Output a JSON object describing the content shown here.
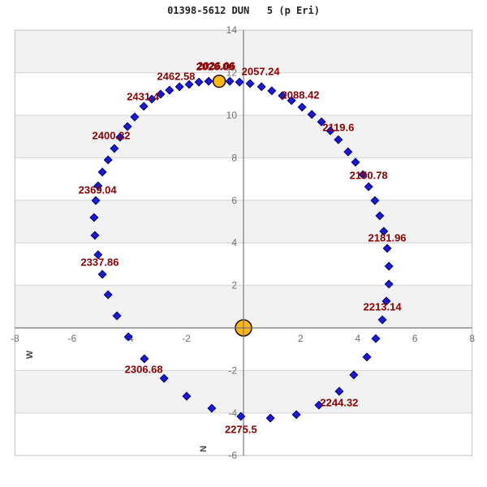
{
  "title": "01398-5612 DUN   5 (p Eri)",
  "colors": {
    "point_fill": "#1a1ad6",
    "point_stroke": "#000080",
    "star_fill": "#ffb612",
    "star_stroke": "#111111",
    "epoch_label": "#8b0000",
    "tick_label": "#6e6e6e",
    "band_gray": "#f2f2f2",
    "gridline": "#d4d4d4",
    "axis_line": "#777777",
    "plot_border": "#c0c0c0"
  },
  "chart_data": {
    "type": "scatter",
    "title": "01398-5612 DUN   5 (p Eri)",
    "description": "Binary star orbit plot: ephemeris positions of companion around primary (at origin), epochs labeled in years",
    "xlim": [
      -8,
      8
    ],
    "ylim": [
      -6,
      14
    ],
    "x_ticks": [
      -8,
      -6,
      -4,
      -2,
      2,
      4,
      6,
      8
    ],
    "y_ticks": [
      14,
      12,
      10,
      8,
      6,
      4,
      2,
      -2,
      -4,
      -6
    ],
    "grid": "horizontal-bands",
    "direction_labels": {
      "west": "W",
      "north": "N"
    },
    "primary_star": {
      "x": 0,
      "y": 0
    },
    "companion_current": {
      "x": -0.85,
      "y": 11.6
    },
    "orbit_points": [
      [
        -0.48,
        11.6
      ],
      [
        -0.14,
        11.56
      ],
      [
        0.23,
        11.49
      ],
      [
        0.63,
        11.34
      ],
      [
        0.99,
        11.15
      ],
      [
        1.36,
        10.92
      ],
      [
        1.68,
        10.69
      ],
      [
        2.05,
        10.38
      ],
      [
        2.39,
        10.04
      ],
      [
        2.73,
        9.69
      ],
      [
        3.04,
        9.27
      ],
      [
        3.32,
        8.85
      ],
      [
        3.66,
        8.28
      ],
      [
        3.92,
        7.79
      ],
      [
        4.18,
        7.21
      ],
      [
        4.38,
        6.64
      ],
      [
        4.6,
        5.99
      ],
      [
        4.77,
        5.27
      ],
      [
        4.91,
        4.54
      ],
      [
        5.03,
        3.74
      ],
      [
        5.09,
        2.9
      ],
      [
        5.09,
        2.06
      ],
      [
        5.0,
        1.26
      ],
      [
        4.86,
        0.38
      ],
      [
        4.63,
        -0.5
      ],
      [
        4.32,
        -1.37
      ],
      [
        3.86,
        -2.21
      ],
      [
        3.35,
        -2.98
      ],
      [
        2.64,
        -3.63
      ],
      [
        1.85,
        -4.08
      ],
      [
        0.94,
        -4.24
      ],
      [
        -0.09,
        -4.16
      ],
      [
        -1.11,
        -3.78
      ],
      [
        -1.99,
        -3.21
      ],
      [
        -2.78,
        -2.37
      ],
      [
        -3.47,
        -1.45
      ],
      [
        -4.03,
        -0.42
      ],
      [
        -4.43,
        0.57
      ],
      [
        -4.74,
        1.56
      ],
      [
        -4.94,
        2.52
      ],
      [
        -5.09,
        3.44
      ],
      [
        -5.2,
        4.35
      ],
      [
        -5.23,
        5.19
      ],
      [
        -5.17,
        5.99
      ],
      [
        -5.09,
        6.68
      ],
      [
        -4.94,
        7.33
      ],
      [
        -4.74,
        7.9
      ],
      [
        -4.52,
        8.44
      ],
      [
        -4.32,
        8.97
      ],
      [
        -4.06,
        9.47
      ],
      [
        -3.81,
        9.92
      ],
      [
        -3.49,
        10.42
      ],
      [
        -3.21,
        10.76
      ],
      [
        -2.9,
        10.99
      ],
      [
        -2.59,
        11.18
      ],
      [
        -2.24,
        11.34
      ],
      [
        -1.9,
        11.45
      ],
      [
        -1.56,
        11.56
      ],
      [
        -1.22,
        11.6
      ]
    ],
    "epoch_labels": [
      {
        "text": "2026.06",
        "x": -0.99,
        "y": 12.29,
        "doubled": true
      },
      {
        "text": "2057.24",
        "x": 0.6,
        "y": 12.06
      },
      {
        "text": "2088.42",
        "x": 1.99,
        "y": 10.95
      },
      {
        "text": "2119.6",
        "x": 3.32,
        "y": 9.43
      },
      {
        "text": "2150.78",
        "x": 4.38,
        "y": 7.18
      },
      {
        "text": "2181.96",
        "x": 5.03,
        "y": 4.24
      },
      {
        "text": "2213.14",
        "x": 4.86,
        "y": 0.99
      },
      {
        "text": "2244.32",
        "x": 3.35,
        "y": -3.51
      },
      {
        "text": "2275.5",
        "x": -0.09,
        "y": -4.77
      },
      {
        "text": "2306.68",
        "x": -3.49,
        "y": -1.95
      },
      {
        "text": "2337.86",
        "x": -5.03,
        "y": 3.09
      },
      {
        "text": "2369.04",
        "x": -5.11,
        "y": 6.49
      },
      {
        "text": "2400.22",
        "x": -4.63,
        "y": 9.05
      },
      {
        "text": "2431.4",
        "x": -3.52,
        "y": 10.88
      },
      {
        "text": "2462.58",
        "x": -2.36,
        "y": 11.83
      }
    ]
  }
}
